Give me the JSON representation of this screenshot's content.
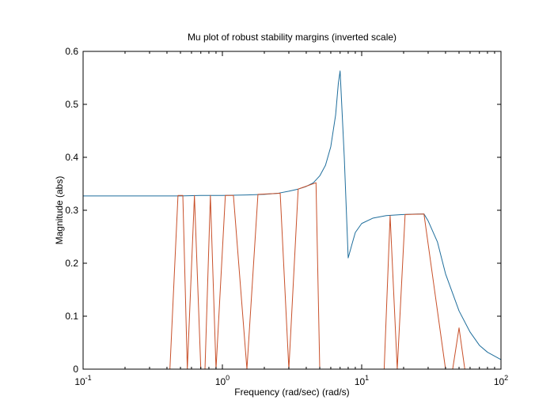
{
  "chart_data": {
    "type": "line",
    "title": "Mu plot of robust stability margins (inverted scale)",
    "xlabel": "Frequency (rad/sec)  (rad/s)",
    "ylabel": "Magnitude (abs)",
    "xscale": "log",
    "xlim": [
      0.1,
      100
    ],
    "ylim": [
      0,
      0.6
    ],
    "grid": false,
    "xticks": [
      {
        "value": 0.1,
        "base": "10",
        "exp": "-1"
      },
      {
        "value": 1,
        "base": "10",
        "exp": "0"
      },
      {
        "value": 10,
        "base": "10",
        "exp": "1"
      },
      {
        "value": 100,
        "base": "10",
        "exp": "2"
      }
    ],
    "yticks": [
      "0",
      "0.1",
      "0.2",
      "0.3",
      "0.4",
      "0.5",
      "0.6"
    ],
    "series": [
      {
        "color": "#1f6e9c",
        "x": [
          0.1,
          0.2,
          0.3,
          0.4,
          0.5,
          0.7,
          1.0,
          1.5,
          2.0,
          2.5,
          3.0,
          3.5,
          4.0,
          4.5,
          5.0,
          5.5,
          6.0,
          6.5,
          6.8,
          7.0,
          7.5,
          8.0,
          8.5,
          9.0,
          10,
          12,
          15,
          20,
          25,
          28,
          30,
          35,
          40,
          50,
          60,
          70,
          80,
          100
        ],
        "y": [
          0.327,
          0.327,
          0.327,
          0.327,
          0.327,
          0.328,
          0.328,
          0.329,
          0.33,
          0.332,
          0.336,
          0.34,
          0.345,
          0.352,
          0.365,
          0.385,
          0.42,
          0.48,
          0.54,
          0.563,
          0.4,
          0.21,
          0.235,
          0.258,
          0.275,
          0.285,
          0.29,
          0.292,
          0.293,
          0.293,
          0.28,
          0.24,
          0.18,
          0.11,
          0.07,
          0.045,
          0.032,
          0.018
        ]
      },
      {
        "color": "#c8502a",
        "x": [
          0.1,
          0.42,
          0.48,
          0.52,
          0.56,
          0.63,
          0.7,
          0.75,
          0.82,
          0.9,
          1.05,
          1.2,
          1.5,
          1.8,
          2.6,
          3.0,
          3.5,
          4.7,
          5.0,
          14.5,
          16,
          18,
          20.5,
          28,
          40,
          45,
          50,
          55,
          100
        ],
        "y": [
          0,
          0,
          0.328,
          0.328,
          0,
          0.328,
          0,
          0,
          0.328,
          0,
          0.328,
          0.328,
          0,
          0.33,
          0.332,
          0,
          0.34,
          0.352,
          0,
          0,
          0.29,
          0,
          0.292,
          0.293,
          0,
          0,
          0.078,
          0,
          0
        ]
      }
    ]
  }
}
